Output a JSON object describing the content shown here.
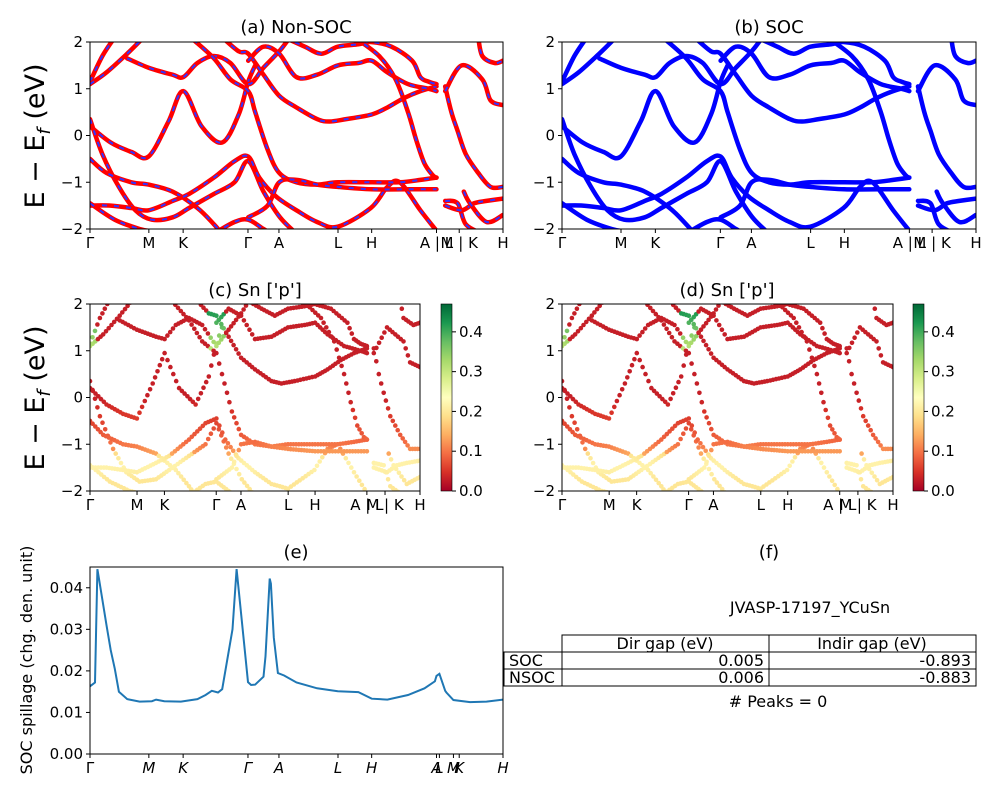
{
  "colors": {
    "nonsoc_solid": "#ff0000",
    "nonsoc_dash": "#3333ff",
    "soc": "#0000ff",
    "spillage": "#1f77b4"
  },
  "band_axis": {
    "ylim": [
      -2,
      2
    ],
    "yticks": [
      "2",
      "1",
      "0",
      "−1",
      "−2"
    ],
    "ylabel": "E − E",
    "ylabel_sub": "f",
    "ylabel_unit": "(eV)",
    "kpoints": [
      "Γ",
      "M",
      "K",
      "Γ",
      "A",
      "L",
      "H",
      "A | L",
      "M | K",
      "H"
    ],
    "kpos": [
      0,
      0.1425,
      0.2255,
      0.3825,
      0.4575,
      0.6005,
      0.682,
      0.839,
      0.894,
      1.0
    ]
  },
  "colorbar": {
    "ticks": [
      "0.4",
      "0.3",
      "0.2",
      "0.1",
      "0.0"
    ],
    "max": 0.47
  },
  "panels": {
    "a": {
      "title": "(a) Non-SOC"
    },
    "b": {
      "title": "(b) SOC"
    },
    "c": {
      "title": "(c)  Sn ['p']"
    },
    "d": {
      "title": "(d) Sn ['p']"
    },
    "e": {
      "title": "(e)"
    },
    "f": {
      "title": "(f)"
    }
  },
  "chart_data": {
    "type": "line",
    "title": "(e)",
    "ylabel": "SOC spillage (chg. den. unit)",
    "ylim": [
      0,
      0.045
    ],
    "yticks": [
      "0.04",
      "0.03",
      "0.02",
      "0.01",
      "0.00"
    ],
    "xtick_labels": [
      "Γ",
      "M",
      "K",
      "Γ",
      "A",
      "L",
      "H",
      "A",
      "L",
      "M",
      "K",
      "H"
    ],
    "x": [
      0,
      0.012,
      0.018,
      0.022,
      0.04,
      0.05,
      0.06,
      0.07,
      0.09,
      0.12,
      0.15,
      0.16,
      0.18,
      0.22,
      0.26,
      0.28,
      0.295,
      0.31,
      0.32,
      0.345,
      0.355,
      0.3825,
      0.39,
      0.4,
      0.42,
      0.425,
      0.435,
      0.438,
      0.445,
      0.455,
      0.47,
      0.5,
      0.55,
      0.6,
      0.65,
      0.682,
      0.72,
      0.77,
      0.81,
      0.835,
      0.839,
      0.846,
      0.86,
      0.863,
      0.88,
      0.92,
      0.96,
      1.0
    ],
    "y": [
      0.0163,
      0.0172,
      0.0445,
      0.042,
      0.031,
      0.025,
      0.0205,
      0.015,
      0.0132,
      0.0126,
      0.0127,
      0.0131,
      0.0127,
      0.0126,
      0.0132,
      0.0142,
      0.0152,
      0.0148,
      0.0156,
      0.03,
      0.0445,
      0.0173,
      0.0166,
      0.0167,
      0.0186,
      0.0235,
      0.0422,
      0.041,
      0.028,
      0.0195,
      0.0189,
      0.0172,
      0.0158,
      0.0151,
      0.0149,
      0.0133,
      0.0131,
      0.0142,
      0.0158,
      0.0175,
      0.0188,
      0.0193,
      0.0152,
      0.0148,
      0.013,
      0.0125,
      0.0126,
      0.0131
    ]
  },
  "info": {
    "material": "JVASP-17197_YCuSn",
    "table_headers": [
      "Dir gap (eV)",
      "Indir gap (eV)"
    ],
    "rows": [
      {
        "label": "SOC",
        "dir": "0.005",
        "indir": "-0.893"
      },
      {
        "label": "NSOC",
        "dir": "0.006",
        "indir": "-0.883"
      }
    ],
    "peaks": "# Peaks = 0"
  }
}
